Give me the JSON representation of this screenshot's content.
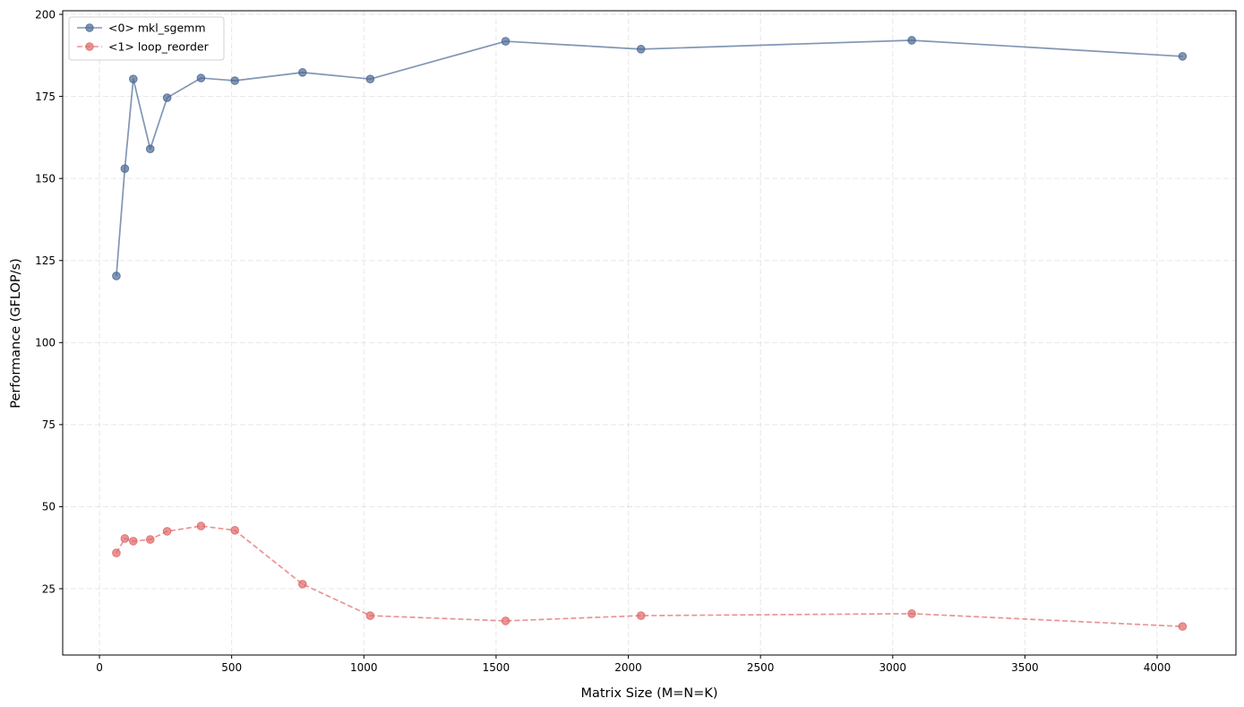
{
  "chart_data": {
    "type": "line",
    "title": "",
    "xlabel": "Matrix Size (M=N=K)",
    "ylabel": "Performance (GFLOP/s)",
    "xlim": [
      -139,
      4298
    ],
    "ylim": [
      4.8,
      201.1
    ],
    "xticks": [
      0,
      500,
      1000,
      1500,
      2000,
      2500,
      3000,
      3500,
      4000
    ],
    "yticks": [
      25,
      50,
      75,
      100,
      125,
      150,
      175,
      200
    ],
    "grid": true,
    "legend_position": "upper left",
    "x": [
      64,
      96,
      128,
      192,
      256,
      384,
      512,
      768,
      1024,
      1536,
      2048,
      3072,
      4096
    ],
    "series": [
      {
        "name": "<0> mkl_sgemm",
        "color": "#4c6a94",
        "linestyle": "solid",
        "marker": "circle",
        "values": [
          120.3,
          153.0,
          180.3,
          159.0,
          174.6,
          180.6,
          179.8,
          182.3,
          180.3,
          191.8,
          189.4,
          192.1,
          187.2
        ]
      },
      {
        "name": "<1> loop_reorder",
        "color": "#e06666",
        "linestyle": "dashed",
        "marker": "circle",
        "values": [
          35.9,
          40.3,
          39.5,
          40.0,
          42.5,
          44.1,
          42.8,
          26.4,
          16.8,
          15.2,
          16.8,
          17.4,
          13.5
        ]
      }
    ]
  }
}
